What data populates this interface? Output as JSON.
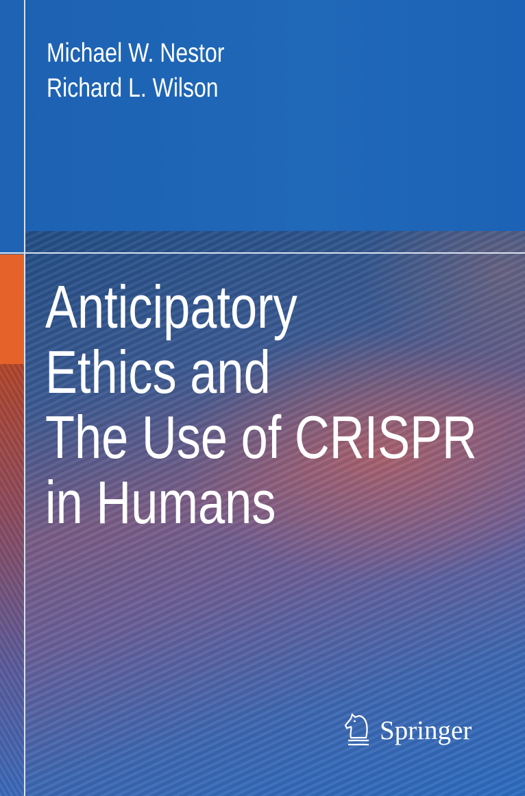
{
  "authors": [
    "Michael W. Nestor",
    "Richard L. Wilson"
  ],
  "title_lines": [
    "Anticipatory",
    "Ethics and",
    "The Use of CRISPR",
    "in Humans"
  ],
  "publisher": {
    "name": "Springer",
    "icon": "knight-chess-icon"
  },
  "colors": {
    "band": "#1e63b4",
    "accent": "#e5622a"
  }
}
